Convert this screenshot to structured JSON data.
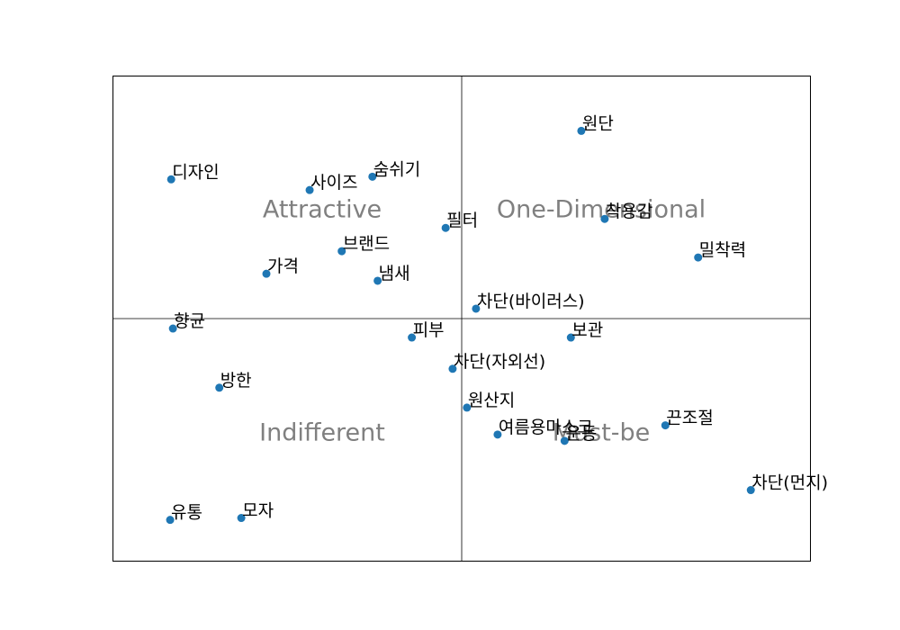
{
  "chart_data": {
    "type": "scatter",
    "title": "",
    "xlabel": "",
    "ylabel": "",
    "grid": false,
    "xlim": [
      -1.0,
      1.0
    ],
    "ylim": [
      -1.0,
      1.0
    ],
    "divider": {
      "x": 0.0,
      "y": 0.0
    },
    "point_color": "#1f77b4",
    "quadrant_color": "#808080",
    "quadrants": [
      {
        "label": "Attractive",
        "x": -0.4,
        "y": 0.45
      },
      {
        "label": "One-Dimensional",
        "x": 0.4,
        "y": 0.45
      },
      {
        "label": "Indifferent",
        "x": -0.4,
        "y": -0.47
      },
      {
        "label": "Must-be",
        "x": 0.4,
        "y": -0.47
      }
    ],
    "points": [
      {
        "label": "원단",
        "x": 0.343,
        "y": 0.774
      },
      {
        "label": "디자인",
        "x": -0.833,
        "y": 0.574
      },
      {
        "label": "사이즈",
        "x": -0.436,
        "y": 0.53
      },
      {
        "label": "숨쉬기",
        "x": -0.256,
        "y": 0.585
      },
      {
        "label": "착용감",
        "x": 0.41,
        "y": 0.411
      },
      {
        "label": "필터",
        "x": -0.046,
        "y": 0.374
      },
      {
        "label": "밀착력",
        "x": 0.678,
        "y": 0.252
      },
      {
        "label": "브랜드",
        "x": -0.344,
        "y": 0.278
      },
      {
        "label": "가격",
        "x": -0.56,
        "y": 0.185
      },
      {
        "label": "냄새",
        "x": -0.241,
        "y": 0.156
      },
      {
        "label": "차단(바이러스)",
        "x": 0.041,
        "y": 0.041
      },
      {
        "label": "향균",
        "x": -0.828,
        "y": -0.041
      },
      {
        "label": "피부",
        "x": -0.143,
        "y": -0.078
      },
      {
        "label": "보관",
        "x": 0.313,
        "y": -0.078
      },
      {
        "label": "차단(자외선)",
        "x": -0.026,
        "y": -0.207
      },
      {
        "label": "방한",
        "x": -0.695,
        "y": -0.285
      },
      {
        "label": "원산지",
        "x": 0.015,
        "y": -0.367
      },
      {
        "label": "끈조절",
        "x": 0.584,
        "y": -0.44
      },
      {
        "label": "여름용마스크",
        "x": 0.103,
        "y": -0.478
      },
      {
        "label": "운동",
        "x": 0.295,
        "y": -0.504
      },
      {
        "label": "차단(먼지)",
        "x": 0.829,
        "y": -0.707
      },
      {
        "label": "유통",
        "x": -0.836,
        "y": -0.83
      },
      {
        "label": "모자",
        "x": -0.632,
        "y": -0.822
      }
    ]
  }
}
